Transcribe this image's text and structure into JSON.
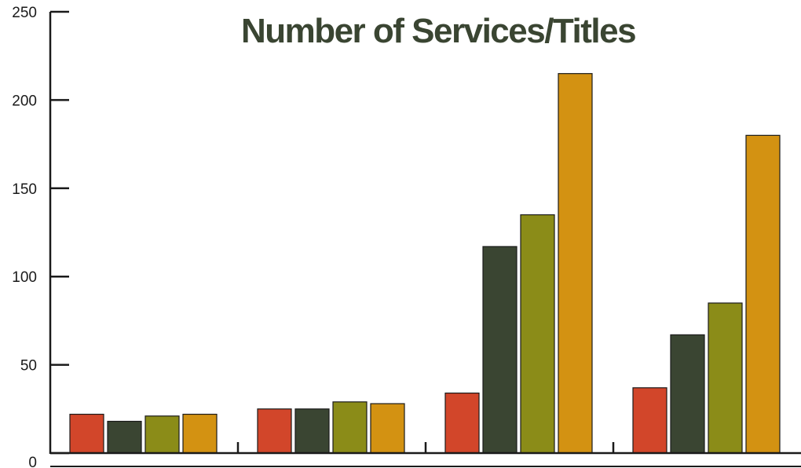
{
  "chart_data": {
    "type": "bar",
    "title": "Number of Services/Titles",
    "xlabel": "",
    "ylabel": "",
    "ylim": [
      0,
      250
    ],
    "yticks": [
      0,
      50,
      100,
      150,
      200,
      250
    ],
    "grid": false,
    "legend": "none",
    "categories": [
      "",
      "",
      "",
      ""
    ],
    "series": [
      {
        "color": "#d2462a",
        "values": [
          22,
          25,
          34,
          37
        ]
      },
      {
        "color": "#3a4532",
        "values": [
          18,
          25,
          117,
          67
        ]
      },
      {
        "color": "#8b8c18",
        "values": [
          21,
          29,
          135,
          85
        ]
      },
      {
        "color": "#d39212",
        "values": [
          22,
          28,
          215,
          180
        ]
      }
    ]
  }
}
